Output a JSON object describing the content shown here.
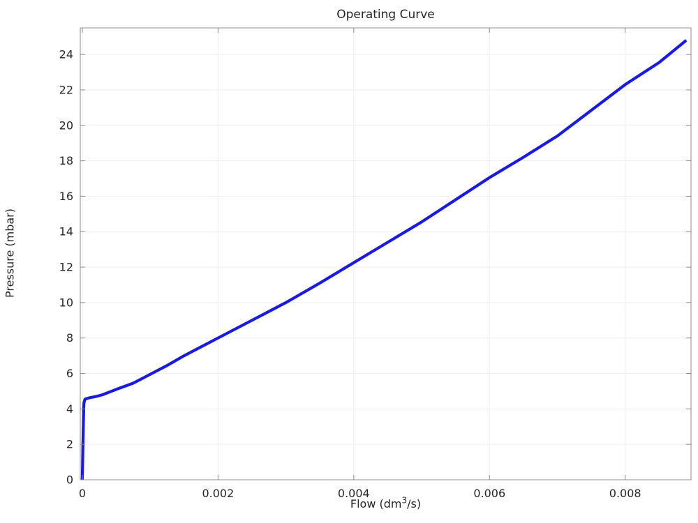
{
  "colors": {
    "line": "#1a1ae6",
    "grid": "#ededed",
    "axis": "#8c8c8c",
    "text": "#262626",
    "background": "#ffffff"
  },
  "chart_data": {
    "type": "line",
    "title": "Operating Curve",
    "xlabel": "Flow (dm³/s)",
    "xlabel_parts": {
      "pre": "Flow (dm",
      "sup": "3",
      "post": "/s)"
    },
    "ylabel": "Pressure (mbar)",
    "xlim": [
      -3e-05,
      0.00897
    ],
    "ylim": [
      0,
      25.5
    ],
    "x_ticks": [
      0,
      0.002,
      0.004,
      0.006,
      0.008
    ],
    "x_tick_labels": [
      "0",
      "0.002",
      "0.004",
      "0.006",
      "0.008"
    ],
    "y_ticks": [
      0,
      2,
      4,
      6,
      8,
      10,
      12,
      14,
      16,
      18,
      20,
      22,
      24
    ],
    "y_tick_labels": [
      "0",
      "2",
      "4",
      "6",
      "8",
      "10",
      "12",
      "14",
      "16",
      "18",
      "20",
      "22",
      "24"
    ],
    "grid": true,
    "legend": "none",
    "line_color": "#1a1ae6",
    "line_width": 4.2,
    "series": [
      {
        "name": "operating-curve",
        "x": [
          0,
          1e-05,
          2e-05,
          2.5e-05,
          4e-05,
          0.0001,
          0.0002,
          0.0003,
          0.0004,
          0.0005,
          0.00075,
          0.001,
          0.00125,
          0.0015,
          0.00175,
          0.002,
          0.0025,
          0.003,
          0.0035,
          0.004,
          0.0045,
          0.005,
          0.0055,
          0.006,
          0.0065,
          0.007,
          0.0075,
          0.008,
          0.0085,
          0.0089
        ],
        "y": [
          0,
          2.2,
          4.0,
          4.35,
          4.55,
          4.62,
          4.7,
          4.8,
          4.95,
          5.1,
          5.45,
          5.95,
          6.45,
          7.0,
          7.5,
          8.0,
          9.0,
          10.0,
          11.1,
          12.25,
          13.4,
          14.55,
          15.8,
          17.05,
          18.2,
          19.4,
          20.85,
          22.3,
          23.55,
          24.8
        ]
      }
    ]
  }
}
